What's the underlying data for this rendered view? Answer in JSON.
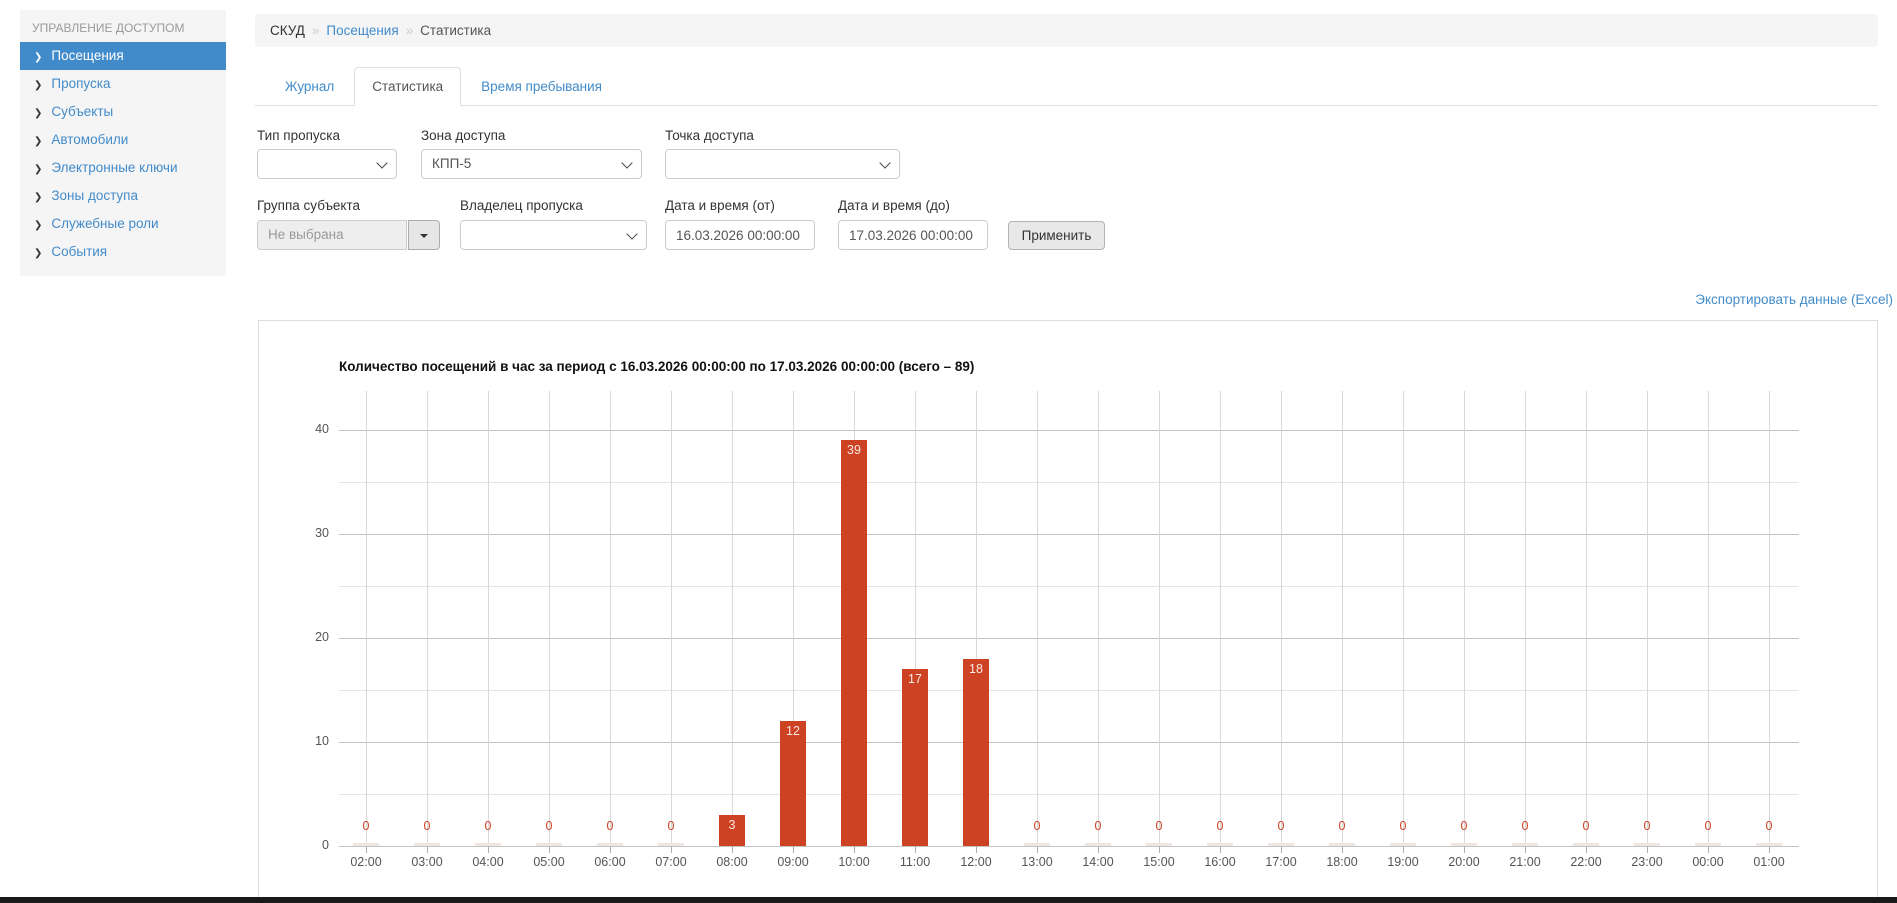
{
  "sidebar": {
    "header": "УПРАВЛЕНИЕ ДОСТУПОМ",
    "items": [
      {
        "label": "Посещения",
        "active": true
      },
      {
        "label": "Пропуска",
        "active": false
      },
      {
        "label": "Субъекты",
        "active": false
      },
      {
        "label": "Автомобили",
        "active": false
      },
      {
        "label": "Электронные ключи",
        "active": false
      },
      {
        "label": "Зоны доступа",
        "active": false
      },
      {
        "label": "Служебные роли",
        "active": false
      },
      {
        "label": "События",
        "active": false
      }
    ]
  },
  "breadcrumb": {
    "separator": "»",
    "items": [
      {
        "label": "СКУД"
      },
      {
        "label": "Посещения"
      },
      {
        "label": "Статистика"
      }
    ]
  },
  "tabs": {
    "items": [
      {
        "label": "Журнал",
        "active": false
      },
      {
        "label": "Статистика",
        "active": true
      },
      {
        "label": "Время пребывания",
        "active": false
      }
    ]
  },
  "filters": {
    "pass_type": {
      "label": "Тип пропуска",
      "value": ""
    },
    "access_zone": {
      "label": "Зона доступа",
      "value": "КПП-5"
    },
    "access_point": {
      "label": "Точка доступа",
      "value": ""
    },
    "subject_group": {
      "label": "Группа субъекта",
      "value": "Не выбрана"
    },
    "pass_owner": {
      "label": "Владелец пропуска",
      "value": ""
    },
    "date_from": {
      "label": "Дата и время (от)",
      "value": "16.03.2026 00:00:00"
    },
    "date_to": {
      "label": "Дата и время (до)",
      "value": "17.03.2026 00:00:00"
    },
    "apply_label": "Применить"
  },
  "export_link": "Экспортировать данные (Excel)",
  "chart_data": {
    "type": "bar",
    "title": "Количество посещений в час за период с 16.03.2026 00:00:00 по 17.03.2026 00:00:00 (всего – 89)",
    "categories": [
      "02:00",
      "03:00",
      "04:00",
      "05:00",
      "06:00",
      "07:00",
      "08:00",
      "09:00",
      "10:00",
      "11:00",
      "12:00",
      "13:00",
      "14:00",
      "15:00",
      "16:00",
      "17:00",
      "18:00",
      "19:00",
      "20:00",
      "21:00",
      "22:00",
      "23:00",
      "00:00",
      "01:00"
    ],
    "values": [
      0,
      0,
      0,
      0,
      0,
      0,
      3,
      12,
      39,
      17,
      18,
      0,
      0,
      0,
      0,
      0,
      0,
      0,
      0,
      0,
      0,
      0,
      0,
      0
    ],
    "total": 89,
    "xlabel": "",
    "ylabel": "",
    "ylim": [
      0,
      43.7
    ],
    "yticks": [
      0,
      10,
      20,
      30,
      40
    ],
    "grid": true,
    "legend": false,
    "bar_color": "#cc4223",
    "zero_label_color": "#cc4223"
  },
  "colors": {
    "accent_blue": "#428bca",
    "sidebar_bg": "#f5f5f5",
    "breadcrumb_bg": "#f5f5f5",
    "bar_red": "#cc4223"
  }
}
